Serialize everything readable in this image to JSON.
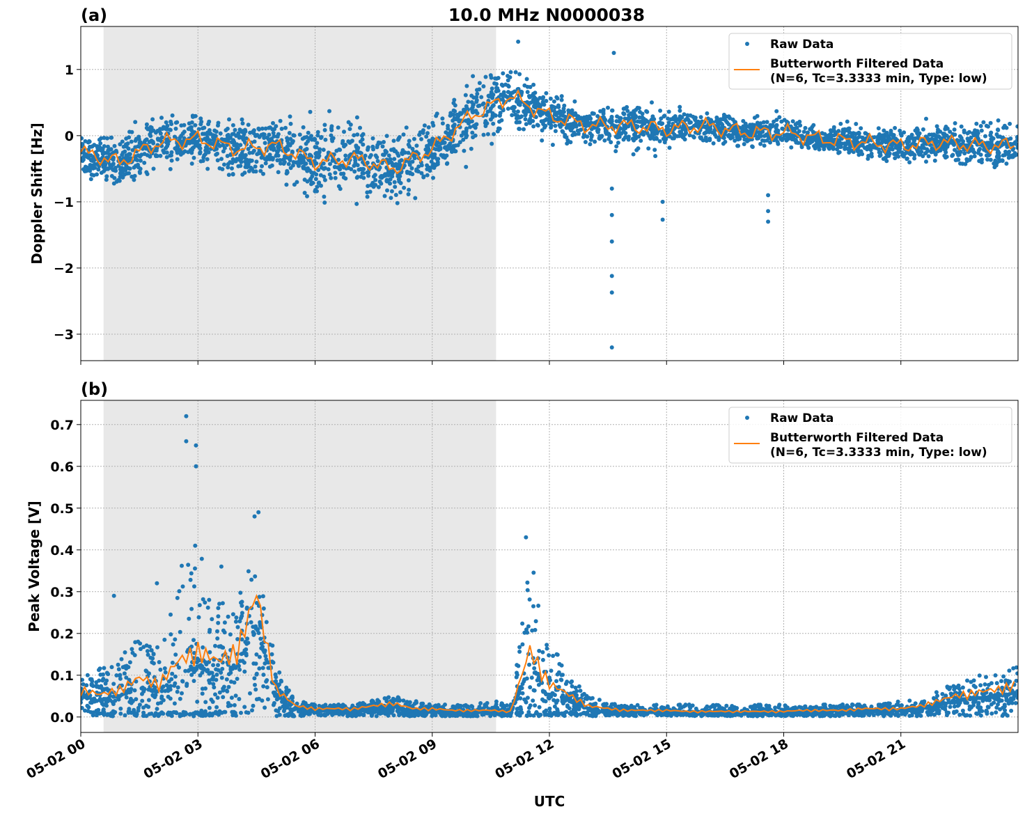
{
  "title": "10.0 MHz N0000038",
  "colors": {
    "raw": "#1f77b4",
    "filtered": "#ff7f0e",
    "shade": "#e8e8e8"
  },
  "legend": {
    "raw": "Raw Data",
    "filtered_line1": "Butterworth Filtered Data",
    "filtered_line2": "(N=6, Tc=3.3333 min, Type: low)",
    "placement": "top-right"
  },
  "xaxis": {
    "label": "UTC",
    "unit": "hours since 05-02 00 UTC axis",
    "ticks": [
      0,
      3,
      6,
      9,
      12,
      15,
      18,
      21
    ],
    "tick_labels": [
      "05-02 00",
      "05-02 03",
      "05-02 06",
      "05-02 09",
      "05-02 12",
      "05-02 15",
      "05-02 18",
      "05-02 21"
    ],
    "xlim_labels": [
      "05-02 00",
      "05-03 00"
    ]
  },
  "chart_data": [
    {
      "panel": "(a)",
      "type": "scatter",
      "ylabel": "Doppler Shift [Hz]",
      "ylim": [
        -3.4,
        1.65
      ],
      "yticks": [
        1,
        0,
        -1,
        -2,
        -3
      ],
      "ytick_labels": [
        "1",
        "0",
        "−1",
        "−2",
        "−3"
      ],
      "grid": true,
      "shaded_interval": [
        "05-02 00:35",
        "05-02 10:38"
      ],
      "filtered_time": [
        "00:00",
        "01:00",
        "02:00",
        "03:00",
        "04:00",
        "05:00",
        "06:00",
        "07:00",
        "08:00",
        "09:00",
        "10:00",
        "11:00",
        "12:00",
        "13:00",
        "14:00",
        "15:00",
        "16:00",
        "17:00",
        "18:00",
        "19:00",
        "20:00",
        "21:00",
        "22:00",
        "23:00",
        "24:00"
      ],
      "filtered": [
        -0.25,
        -0.4,
        -0.1,
        -0.05,
        -0.2,
        -0.15,
        -0.4,
        -0.35,
        -0.5,
        -0.2,
        0.3,
        0.6,
        0.3,
        0.15,
        0.15,
        0.1,
        0.15,
        0.05,
        0.05,
        -0.05,
        -0.1,
        -0.15,
        -0.1,
        -0.15,
        -0.15
      ],
      "raw_spread": [
        0.3,
        0.4,
        0.45,
        0.4,
        0.45,
        0.5,
        0.6,
        0.6,
        0.5,
        0.45,
        0.5,
        0.5,
        0.35,
        0.3,
        0.35,
        0.3,
        0.25,
        0.2,
        0.25,
        0.2,
        0.25,
        0.25,
        0.3,
        0.35,
        0.35
      ],
      "outliers": [
        [
          "13:36",
          -3.2
        ],
        [
          "13:36",
          -2.37
        ],
        [
          "13:36",
          -2.12
        ],
        [
          "13:36",
          -1.6
        ],
        [
          "13:36",
          -1.2
        ],
        [
          "13:36",
          -0.8
        ],
        [
          "14:54",
          -1.27
        ],
        [
          "14:54",
          -1.0
        ],
        [
          "17:36",
          -1.3
        ],
        [
          "17:36",
          -1.14
        ],
        [
          "17:36",
          -0.9
        ],
        [
          "13:39",
          1.25
        ],
        [
          "11:12",
          1.42
        ]
      ]
    },
    {
      "panel": "(b)",
      "type": "scatter",
      "ylabel": "Peak Voltage [V]",
      "ylim": [
        -0.037,
        0.758
      ],
      "yticks": [
        0.0,
        0.1,
        0.2,
        0.3,
        0.4,
        0.5,
        0.6,
        0.7
      ],
      "ytick_labels": [
        "0.0",
        "0.1",
        "0.2",
        "0.3",
        "0.4",
        "0.5",
        "0.6",
        "0.7"
      ],
      "grid": true,
      "shaded_interval": [
        "05-02 00:35",
        "05-02 10:38"
      ],
      "filtered_time_step_minutes": 30,
      "filtered": [
        0.05,
        0.04,
        0.05,
        0.07,
        0.06,
        0.1,
        0.12,
        0.1,
        0.12,
        0.22,
        0.05,
        0.02,
        0.015,
        0.015,
        0.015,
        0.02,
        0.025,
        0.015,
        0.015,
        0.012,
        0.012,
        0.012,
        0.01,
        0.12,
        0.06,
        0.04,
        0.02,
        0.015,
        0.012,
        0.012,
        0.012,
        0.01,
        0.01,
        0.01,
        0.01,
        0.01,
        0.01,
        0.012,
        0.012,
        0.012,
        0.015,
        0.015,
        0.015,
        0.02,
        0.03,
        0.04,
        0.045,
        0.05,
        0.06
      ],
      "raw_upper": [
        0.1,
        0.12,
        0.15,
        0.2,
        0.2,
        0.35,
        0.45,
        0.28,
        0.3,
        0.42,
        0.12,
        0.04,
        0.03,
        0.03,
        0.03,
        0.04,
        0.05,
        0.04,
        0.03,
        0.03,
        0.03,
        0.04,
        0.03,
        0.38,
        0.2,
        0.1,
        0.05,
        0.035,
        0.03,
        0.03,
        0.03,
        0.03,
        0.03,
        0.03,
        0.03,
        0.03,
        0.03,
        0.03,
        0.03,
        0.03,
        0.03,
        0.03,
        0.04,
        0.04,
        0.07,
        0.08,
        0.1,
        0.1,
        0.13
      ],
      "outliers": [
        [
          "02:42",
          0.72
        ],
        [
          "02:42",
          0.66
        ],
        [
          "02:57",
          0.65
        ],
        [
          "02:57",
          0.6
        ],
        [
          "04:33",
          0.49
        ],
        [
          "04:27",
          0.48
        ],
        [
          "11:24",
          0.43
        ],
        [
          "01:57",
          0.32
        ],
        [
          "00:51",
          0.29
        ],
        [
          "03:36",
          0.36
        ]
      ]
    }
  ]
}
